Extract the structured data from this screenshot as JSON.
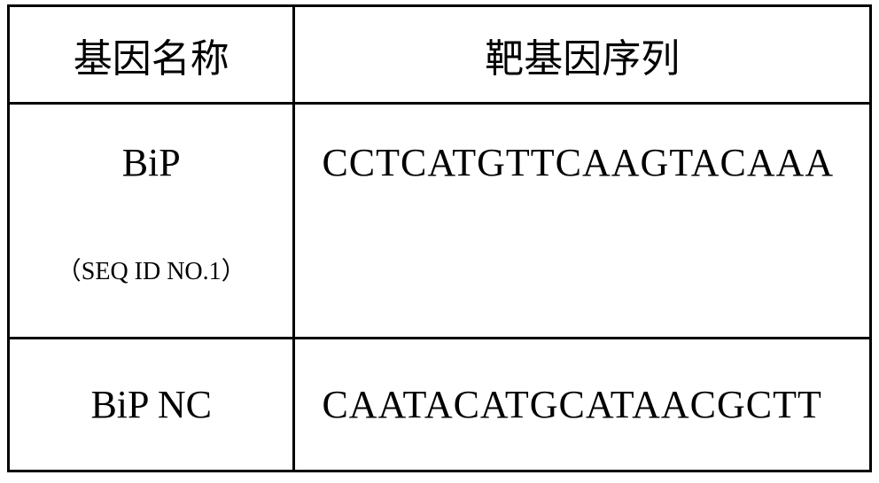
{
  "table": {
    "headers": {
      "col1": "基因名称",
      "col2": "靶基因序列"
    },
    "rows": [
      {
        "gene_name": "BiP",
        "seq_id": "（SEQ ID NO.1）",
        "sequence": "CCTCATGTTCAAGTACAAA"
      },
      {
        "gene_name": "BiP NC",
        "seq_id": "",
        "sequence": "CAATACATGCATAACGCTT"
      }
    ]
  },
  "styling": {
    "border_color": "#000000",
    "border_width": 3,
    "background_color": "#ffffff",
    "text_color": "#000000",
    "header_fontsize": 44,
    "gene_fontsize": 44,
    "sequence_fontsize": 44,
    "seqid_fontsize": 28,
    "cjk_font": "SimSun",
    "latin_font": "Times New Roman",
    "col1_width": 325,
    "col2_width": 651,
    "header_row_height": 110,
    "data_row1_height": 265,
    "data_row2_height": 150
  }
}
